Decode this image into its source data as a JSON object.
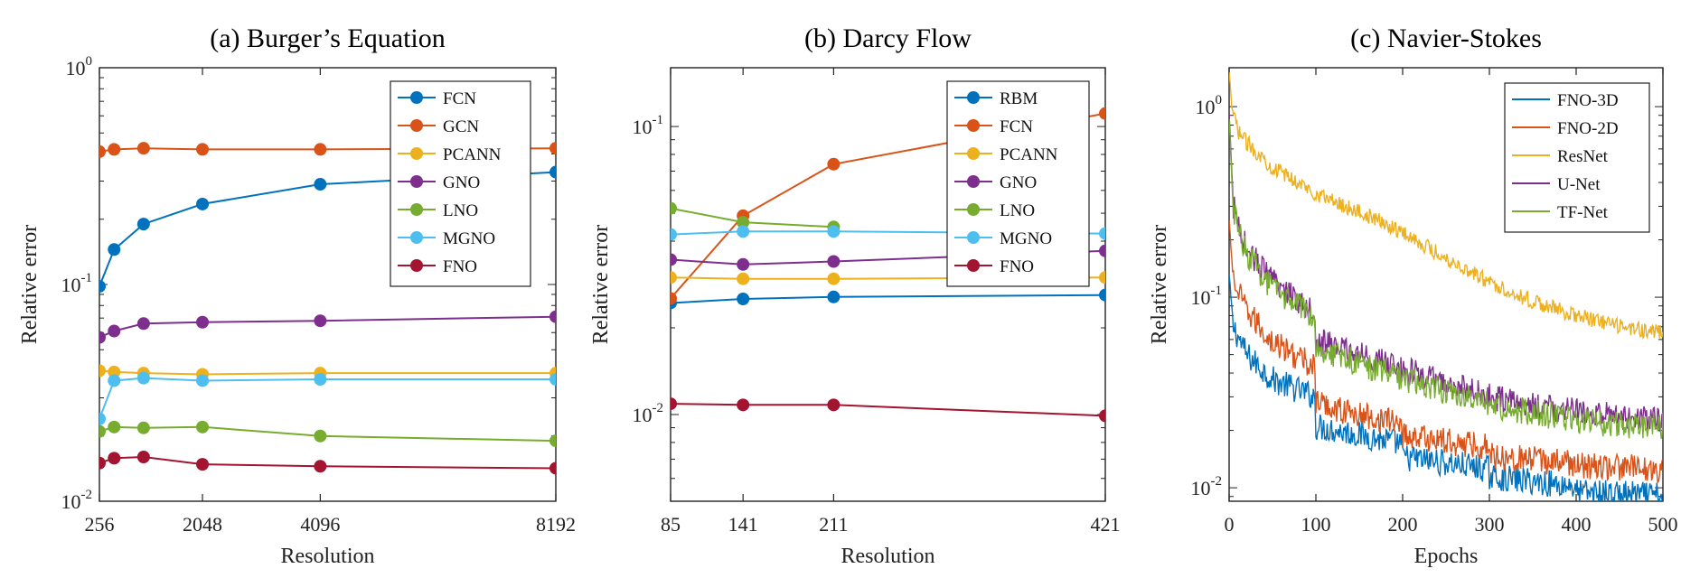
{
  "colors": {
    "blue": "#0072BD",
    "orange": "#D95319",
    "yellow": "#EDB120",
    "purple": "#7E2F8E",
    "green": "#77AC30",
    "cyan": "#4DBEEE",
    "maroon": "#A2142F"
  },
  "chart_data": [
    {
      "type": "line",
      "title": "(a) Burger’s Equation",
      "xlabel": "Resolution",
      "ylabel": "Relative error",
      "yscale": "log",
      "xlim": [
        256,
        8192
      ],
      "ylim": [
        0.01,
        1
      ],
      "x_ticks": [
        256,
        2048,
        4096,
        8192
      ],
      "y_ticks": [
        {
          "value": 0.01,
          "label": "10",
          "exp": "-2"
        },
        {
          "value": 0.1,
          "label": "10",
          "exp": "-1"
        },
        {
          "value": 1,
          "label": "10",
          "exp": "0"
        }
      ],
      "legend": "top-right",
      "series": [
        {
          "name": "FCN",
          "color": "#0072BD",
          "x": [
            256,
            512,
            1024,
            2048,
            4096,
            8192
          ],
          "y": [
            0.098,
            0.145,
            0.19,
            0.235,
            0.29,
            0.33
          ]
        },
        {
          "name": "GCN",
          "color": "#D95319",
          "x": [
            256,
            512,
            1024,
            2048,
            4096,
            8192
          ],
          "y": [
            0.41,
            0.42,
            0.425,
            0.42,
            0.42,
            0.425
          ]
        },
        {
          "name": "PCANN",
          "color": "#EDB120",
          "x": [
            256,
            512,
            1024,
            2048,
            4096,
            8192
          ],
          "y": [
            0.04,
            0.0395,
            0.039,
            0.0385,
            0.039,
            0.039
          ]
        },
        {
          "name": "GNO",
          "color": "#7E2F8E",
          "x": [
            256,
            512,
            1024,
            2048,
            4096,
            8192
          ],
          "y": [
            0.057,
            0.061,
            0.066,
            0.067,
            0.068,
            0.071
          ]
        },
        {
          "name": "LNO",
          "color": "#77AC30",
          "x": [
            256,
            512,
            1024,
            2048,
            4096,
            8192
          ],
          "y": [
            0.021,
            0.022,
            0.0218,
            0.022,
            0.02,
            0.019
          ]
        },
        {
          "name": "MGNO",
          "color": "#4DBEEE",
          "x": [
            256,
            512,
            1024,
            2048,
            4096,
            8192
          ],
          "y": [
            0.024,
            0.036,
            0.037,
            0.036,
            0.0365,
            0.0365
          ]
        },
        {
          "name": "FNO",
          "color": "#A2142F",
          "x": [
            256,
            512,
            1024,
            2048,
            4096,
            8192
          ],
          "y": [
            0.015,
            0.0158,
            0.016,
            0.0148,
            0.0145,
            0.0142
          ]
        }
      ]
    },
    {
      "type": "line",
      "title": "(b) Darcy Flow",
      "xlabel": "Resolution",
      "ylabel": "Relative error",
      "yscale": "log",
      "xlim": [
        85,
        421
      ],
      "ylim": [
        0.005,
        0.16
      ],
      "x_ticks": [
        85,
        141,
        211,
        421
      ],
      "y_ticks": [
        {
          "value": 0.01,
          "label": "10",
          "exp": "-2"
        },
        {
          "value": 0.1,
          "label": "10",
          "exp": "-1"
        }
      ],
      "legend": "top-right",
      "series": [
        {
          "name": "RBM",
          "color": "#0072BD",
          "x": [
            85,
            141,
            211,
            421
          ],
          "y": [
            0.0244,
            0.0252,
            0.0256,
            0.026
          ]
        },
        {
          "name": "FCN",
          "color": "#D95319",
          "x": [
            85,
            141,
            211,
            421
          ],
          "y": [
            0.0253,
            0.049,
            0.074,
            0.111
          ]
        },
        {
          "name": "PCANN",
          "color": "#EDB120",
          "x": [
            85,
            141,
            211,
            421
          ],
          "y": [
            0.0299,
            0.0296,
            0.0296,
            0.0299
          ]
        },
        {
          "name": "GNO",
          "color": "#7E2F8E",
          "x": [
            85,
            141,
            211,
            421
          ],
          "y": [
            0.0345,
            0.0332,
            0.034,
            0.037
          ]
        },
        {
          "name": "LNO",
          "color": "#77AC30",
          "x": [
            85,
            141,
            211
          ],
          "y": [
            0.052,
            0.0465,
            0.0448
          ]
        },
        {
          "name": "MGNO",
          "color": "#4DBEEE",
          "x": [
            85,
            141,
            211,
            421
          ],
          "y": [
            0.0422,
            0.0432,
            0.0432,
            0.0425
          ]
        },
        {
          "name": "FNO",
          "color": "#A2142F",
          "x": [
            85,
            141,
            211,
            421
          ],
          "y": [
            0.0109,
            0.0108,
            0.0108,
            0.0099
          ]
        }
      ]
    },
    {
      "type": "line",
      "title": "(c) Navier-Stokes",
      "xlabel": "Epochs",
      "ylabel": "Relative error",
      "yscale": "log",
      "xlim": [
        0,
        500
      ],
      "ylim": [
        0.0085,
        1.6
      ],
      "x_ticks": [
        0,
        100,
        200,
        300,
        400,
        500
      ],
      "y_ticks": [
        {
          "value": 0.01,
          "label": "10",
          "exp": "-2"
        },
        {
          "value": 0.1,
          "label": "10",
          "exp": "-1"
        },
        {
          "value": 1,
          "label": "10",
          "exp": "0"
        }
      ],
      "legend": "top-right",
      "series": [
        {
          "name": "FNO-3D",
          "color": "#0072BD",
          "x": [
            0,
            5,
            20,
            50,
            99,
            100,
            150,
            199,
            200,
            250,
            299,
            300,
            350,
            399,
            400,
            450,
            500
          ],
          "y": [
            0.13,
            0.07,
            0.05,
            0.037,
            0.03,
            0.021,
            0.019,
            0.017,
            0.0145,
            0.0135,
            0.0125,
            0.0115,
            0.0108,
            0.0102,
            0.0095,
            0.0093,
            0.009
          ]
        },
        {
          "name": "FNO-2D",
          "color": "#D95319",
          "x": [
            0,
            5,
            20,
            50,
            99,
            100,
            150,
            199,
            200,
            250,
            299,
            300,
            350,
            399,
            400,
            450,
            500
          ],
          "y": [
            0.25,
            0.12,
            0.085,
            0.058,
            0.043,
            0.028,
            0.024,
            0.022,
            0.019,
            0.0175,
            0.0165,
            0.015,
            0.014,
            0.0135,
            0.013,
            0.0128,
            0.0125
          ]
        },
        {
          "name": "ResNet",
          "color": "#EDB120",
          "x": [
            0,
            3,
            10,
            20,
            50,
            100,
            150,
            200,
            250,
            300,
            350,
            400,
            450,
            500
          ],
          "y": [
            1.5,
            1.0,
            0.75,
            0.65,
            0.48,
            0.35,
            0.28,
            0.22,
            0.16,
            0.12,
            0.095,
            0.08,
            0.07,
            0.065
          ]
        },
        {
          "name": "U-Net",
          "color": "#7E2F8E",
          "x": [
            0,
            5,
            20,
            50,
            99,
            100,
            150,
            200,
            250,
            300,
            350,
            400,
            450,
            500
          ],
          "y": [
            0.9,
            0.3,
            0.18,
            0.12,
            0.085,
            0.06,
            0.05,
            0.042,
            0.035,
            0.03,
            0.027,
            0.025,
            0.0235,
            0.023
          ]
        },
        {
          "name": "TF-Net",
          "color": "#77AC30",
          "x": [
            0,
            5,
            20,
            50,
            99,
            100,
            150,
            200,
            250,
            300,
            350,
            400,
            450,
            500
          ],
          "y": [
            0.85,
            0.28,
            0.17,
            0.11,
            0.08,
            0.055,
            0.045,
            0.038,
            0.032,
            0.027,
            0.025,
            0.0225,
            0.0215,
            0.021
          ]
        }
      ]
    }
  ]
}
